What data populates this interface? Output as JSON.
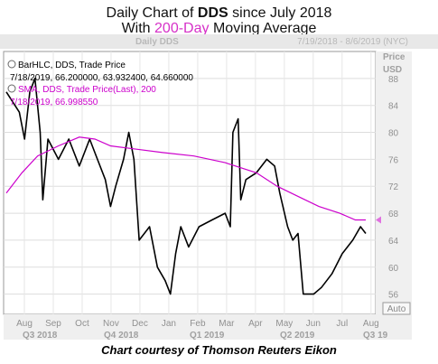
{
  "header": {
    "line1_prefix": "Daily Chart of ",
    "line1_ticker": "DDS",
    "line1_suffix": " since July 2018",
    "line2_prefix": "With ",
    "line2_highlight": "200-Day",
    "line2_suffix": " Moving Average"
  },
  "footer": {
    "credit": "Chart courtesy of Thomson Reuters Eikon"
  },
  "chart_data": {
    "type": "bar",
    "chart_label": "Daily DDS",
    "date_range": "7/19/2018 - 8/6/2019 (NYC)",
    "axis_title_line1": "Price",
    "axis_title_line2": "USD",
    "ylim": [
      53,
      92
    ],
    "yticks": [
      56,
      60,
      64,
      68,
      72,
      76,
      80,
      84,
      88
    ],
    "months": [
      "Aug",
      "Sep",
      "Oct",
      "Nov",
      "Dec",
      "Jan",
      "Feb",
      "Mar",
      "Apr",
      "May",
      "Jun",
      "Jul",
      "Aug"
    ],
    "quarters": [
      "Q3 2018",
      "Q4 2018",
      "Q1 2019",
      "Q2 2019",
      "Q3 19"
    ],
    "auto_label": "Auto",
    "legend": [
      {
        "name": "BarHLC, DDS, Trade Price",
        "detail": "7/18/2019, 66.200000, 63.932400, 64.660000",
        "color": "#000000"
      },
      {
        "name": "SMA, DDS, Trade Price(Last), 200",
        "detail": "7/18/2019, 66.998550",
        "color": "#cc00cc"
      }
    ],
    "price_path": [
      [
        0,
        86
      ],
      [
        5,
        83
      ],
      [
        7,
        79
      ],
      [
        9,
        86
      ],
      [
        11,
        88
      ],
      [
        13,
        80
      ],
      [
        14,
        70
      ],
      [
        16,
        79
      ],
      [
        20,
        76
      ],
      [
        24,
        79
      ],
      [
        28,
        75
      ],
      [
        32,
        79
      ],
      [
        35,
        76
      ],
      [
        38,
        73
      ],
      [
        40,
        69
      ],
      [
        42,
        72
      ],
      [
        45,
        76
      ],
      [
        47,
        80
      ],
      [
        49,
        76
      ],
      [
        51,
        64
      ],
      [
        55,
        66
      ],
      [
        58,
        60
      ],
      [
        61,
        58
      ],
      [
        63,
        56
      ],
      [
        65,
        62
      ],
      [
        67,
        66
      ],
      [
        70,
        63
      ],
      [
        74,
        66
      ],
      [
        79,
        67
      ],
      [
        84,
        68
      ],
      [
        86,
        66
      ],
      [
        87,
        80
      ],
      [
        89,
        82
      ],
      [
        90,
        70
      ],
      [
        92,
        73
      ],
      [
        96,
        74
      ],
      [
        100,
        76
      ],
      [
        103,
        75
      ],
      [
        105,
        71
      ],
      [
        108,
        66
      ],
      [
        110,
        64
      ],
      [
        112,
        65
      ],
      [
        114,
        56
      ],
      [
        118,
        56
      ],
      [
        121,
        57
      ],
      [
        125,
        59
      ],
      [
        129,
        62
      ],
      [
        133,
        64
      ],
      [
        136,
        66
      ],
      [
        138,
        65
      ]
    ],
    "sma_path": [
      [
        0,
        71
      ],
      [
        6,
        74
      ],
      [
        12,
        76.5
      ],
      [
        20,
        78
      ],
      [
        28,
        79.3
      ],
      [
        34,
        79
      ],
      [
        40,
        78
      ],
      [
        50,
        77.5
      ],
      [
        60,
        77
      ],
      [
        72,
        76.5
      ],
      [
        84,
        75.5
      ],
      [
        96,
        74
      ],
      [
        104,
        72
      ],
      [
        112,
        70.5
      ],
      [
        120,
        69
      ],
      [
        128,
        68
      ],
      [
        134,
        67
      ],
      [
        138,
        67
      ]
    ],
    "x_max": 138
  }
}
